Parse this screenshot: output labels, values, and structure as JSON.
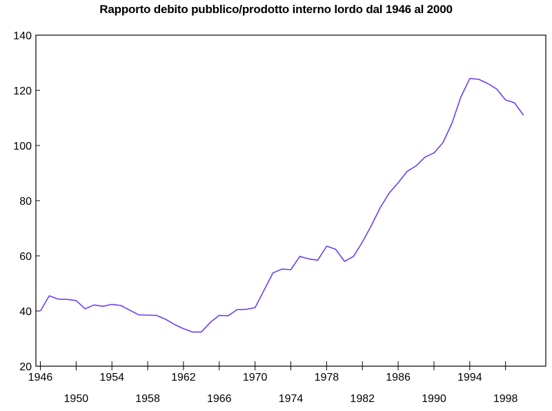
{
  "chart_data": {
    "type": "line",
    "title": "Rapporto debito pubblico/prodotto interno lordo dal 1946 al 2000",
    "xlabel": "",
    "ylabel": "",
    "xlim": [
      1945.5,
      2002.5
    ],
    "ylim": [
      20,
      140
    ],
    "grid": false,
    "legend": "none",
    "line_color": "#6b3df5",
    "y_ticks": [
      20,
      40,
      60,
      80,
      100,
      120,
      140
    ],
    "x_ticks_upper": [
      1946,
      1954,
      1962,
      1970,
      1978,
      1986,
      1994
    ],
    "x_ticks_lower": [
      1950,
      1958,
      1966,
      1974,
      1982,
      1990,
      1998
    ],
    "series": [
      {
        "x": [
          1946,
          1947,
          1948,
          1949,
          1950,
          1951,
          1952,
          1953,
          1954,
          1955,
          1956,
          1957,
          1958,
          1959,
          1960,
          1961,
          1962,
          1963,
          1964,
          1965,
          1966,
          1967,
          1968,
          1969,
          1970,
          1971,
          1972,
          1973,
          1974,
          1975,
          1976,
          1977,
          1978,
          1979,
          1980,
          1981,
          1982,
          1983,
          1984,
          1985,
          1986,
          1987,
          1988,
          1989,
          1990,
          1991,
          1992,
          1993,
          1994,
          1995,
          1996,
          1997,
          1998,
          1999,
          2000
        ],
        "y": [
          40,
          45.5,
          44.3,
          44.2,
          43.8,
          40.8,
          42.2,
          41.7,
          42.4,
          42,
          40.3,
          38.6,
          38.5,
          38.4,
          37,
          35.1,
          33.6,
          32.4,
          32.4,
          35.9,
          38.4,
          38.3,
          40.5,
          40.6,
          41.2,
          47.5,
          53.8,
          55.2,
          55,
          59.8,
          58.9,
          58.4,
          63.5,
          62.4,
          58,
          59.8,
          65,
          71,
          77.5,
          82.8,
          86.5,
          90.6,
          92.6,
          95.8,
          97.3,
          101,
          108,
          117.5,
          124.3,
          124,
          122.5,
          120.5,
          116.5,
          115.5,
          111
        ]
      }
    ]
  }
}
